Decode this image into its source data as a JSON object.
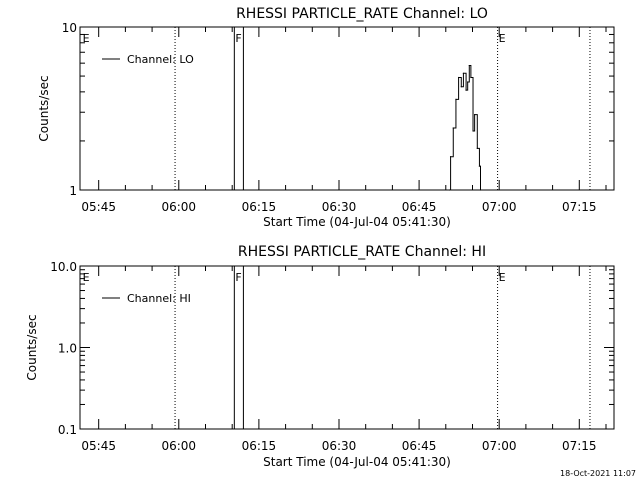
{
  "chart_data": [
    {
      "type": "line",
      "title": "RHESSI PARTICLE_RATE Channel: LO",
      "xlabel": "Start Time (04-Jul-04 05:41:30)",
      "ylabel": "Counts/sec",
      "yscale": "log",
      "ylim": [
        1,
        10
      ],
      "xlim_minutes_from_start": [
        0,
        100
      ],
      "x_ticks": [
        {
          "label": "05:45",
          "t": 3.5
        },
        {
          "label": "06:00",
          "t": 18.5
        },
        {
          "label": "06:15",
          "t": 33.5
        },
        {
          "label": "06:30",
          "t": 48.5
        },
        {
          "label": "06:45",
          "t": 63.5
        },
        {
          "label": "07:00",
          "t": 78.5
        },
        {
          "label": "07:15",
          "t": 93.5
        }
      ],
      "y_ticks": [
        {
          "label": "10",
          "v": 10
        },
        {
          "label": "1",
          "v": 1
        }
      ],
      "legend": "top-left",
      "series": [
        {
          "name": "Channel: LO",
          "x": [
            69.2,
            69.4,
            69.9,
            70.4,
            70.9,
            71.4,
            71.8,
            72.3,
            72.6,
            72.9,
            73.2,
            73.6,
            73.9,
            74.4,
            74.8,
            75.0
          ],
          "y": [
            1.0,
            1.6,
            2.4,
            3.6,
            4.9,
            4.3,
            5.2,
            4.1,
            4.6,
            5.8,
            4.9,
            2.3,
            2.9,
            1.8,
            1.4,
            1.0
          ]
        }
      ],
      "event_markers": [
        {
          "label": "E",
          "t": 0.3,
          "style": "none"
        },
        {
          "label": "",
          "t": 17.8,
          "style": "dotted"
        },
        {
          "label": "F",
          "t": 28.9,
          "style": "solid"
        },
        {
          "label": "",
          "t": 30.6,
          "style": "solid"
        },
        {
          "label": "E",
          "t": 78.2,
          "style": "dotted"
        },
        {
          "label": "",
          "t": 95.5,
          "style": "dotted"
        }
      ]
    },
    {
      "type": "line",
      "title": "RHESSI PARTICLE_RATE Channel: HI",
      "xlabel": "Start Time (04-Jul-04 05:41:30)",
      "ylabel": "Counts/sec",
      "yscale": "log",
      "ylim": [
        0.1,
        10
      ],
      "xlim_minutes_from_start": [
        0,
        100
      ],
      "x_ticks": [
        {
          "label": "05:45",
          "t": 3.5
        },
        {
          "label": "06:00",
          "t": 18.5
        },
        {
          "label": "06:15",
          "t": 33.5
        },
        {
          "label": "06:30",
          "t": 48.5
        },
        {
          "label": "06:45",
          "t": 63.5
        },
        {
          "label": "07:00",
          "t": 78.5
        },
        {
          "label": "07:15",
          "t": 93.5
        }
      ],
      "y_ticks": [
        {
          "label": "10.0",
          "v": 10
        },
        {
          "label": "1.0",
          "v": 1
        },
        {
          "label": "0.1",
          "v": 0.1
        }
      ],
      "legend": "top-left",
      "series": [
        {
          "name": "Channel: HI",
          "x": [],
          "y": []
        }
      ],
      "event_markers": [
        {
          "label": "E",
          "t": 0.3,
          "style": "none"
        },
        {
          "label": "",
          "t": 17.8,
          "style": "dotted"
        },
        {
          "label": "F",
          "t": 28.9,
          "style": "solid"
        },
        {
          "label": "",
          "t": 30.6,
          "style": "solid"
        },
        {
          "label": "E",
          "t": 78.2,
          "style": "dotted"
        },
        {
          "label": "",
          "t": 95.5,
          "style": "dotted"
        }
      ]
    }
  ],
  "footer": {
    "timestamp": "18-Oct-2021 11:07"
  }
}
